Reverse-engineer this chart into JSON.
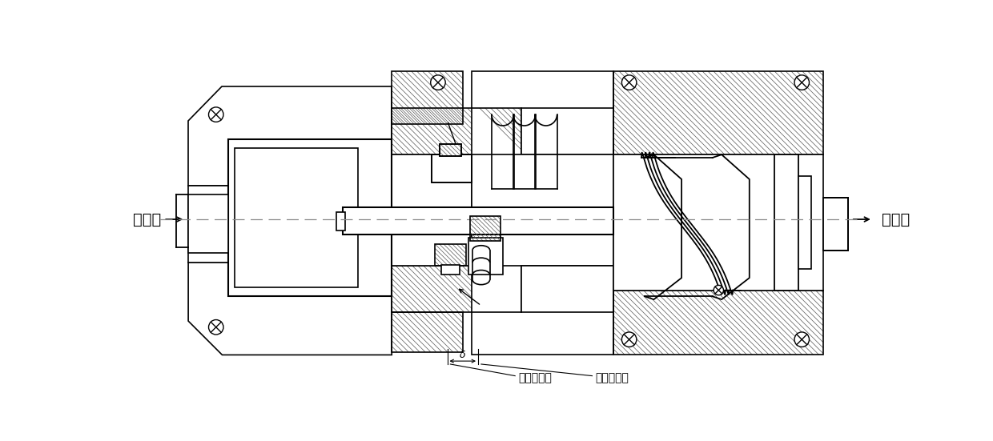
{
  "left_label": "进水端",
  "right_label": "出水端",
  "bottom_label1": "旁通流量口",
  "bottom_label2": "基础流量口",
  "delta_label": "δ",
  "fig_width": 12.4,
  "fig_height": 5.51,
  "dpi": 100
}
